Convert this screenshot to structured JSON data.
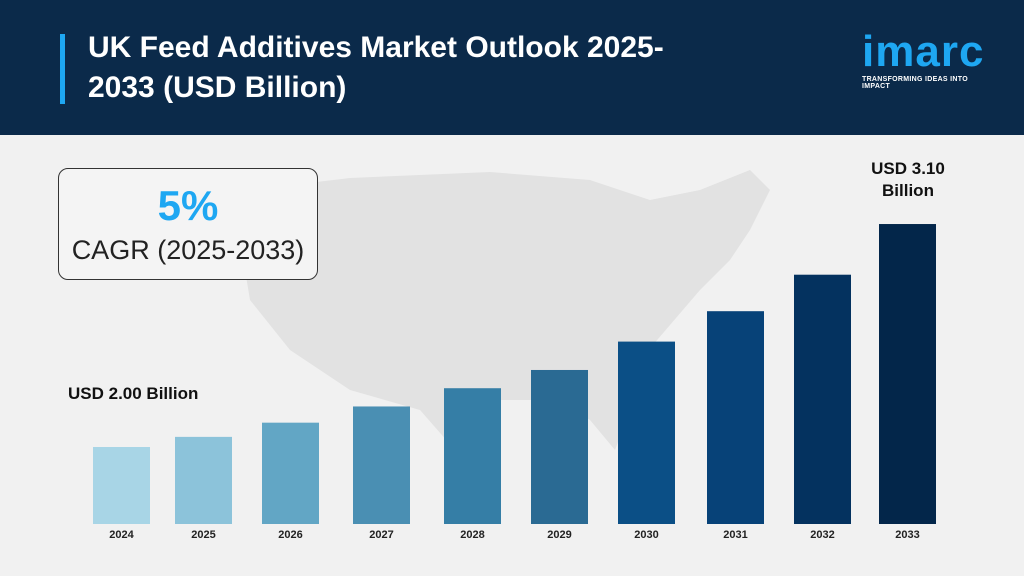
{
  "header": {
    "title": "UK Feed Additives Market Outlook 2025-2033 (USD Billion)"
  },
  "logo": {
    "word": "imarc",
    "tagline": "TRANSFORMING IDEAS INTO IMPACT",
    "color": "#1ea7f2"
  },
  "cagr": {
    "value": "5%",
    "label": "CAGR (2025-2033)"
  },
  "chart_data": {
    "type": "bar",
    "title": "UK Feed Additives Market Outlook 2025-2033 (USD Billion)",
    "categories": [
      "2024",
      "2025",
      "2026",
      "2027",
      "2028",
      "2029",
      "2030",
      "2031",
      "2032",
      "2033"
    ],
    "values": [
      2.0,
      2.05,
      2.12,
      2.2,
      2.29,
      2.38,
      2.52,
      2.67,
      2.85,
      3.1
    ],
    "colors": [
      "#a8d5e6",
      "#8cc3da",
      "#62a6c5",
      "#4a8fb3",
      "#357ea6",
      "#2a6a93",
      "#0b4f86",
      "#074278",
      "#04325f",
      "#03264a"
    ],
    "annotations": {
      "start": "USD 2.00 Billion",
      "end_line1": "USD 3.10",
      "end_line2": "Billion"
    },
    "grid": false,
    "legend": "none"
  }
}
